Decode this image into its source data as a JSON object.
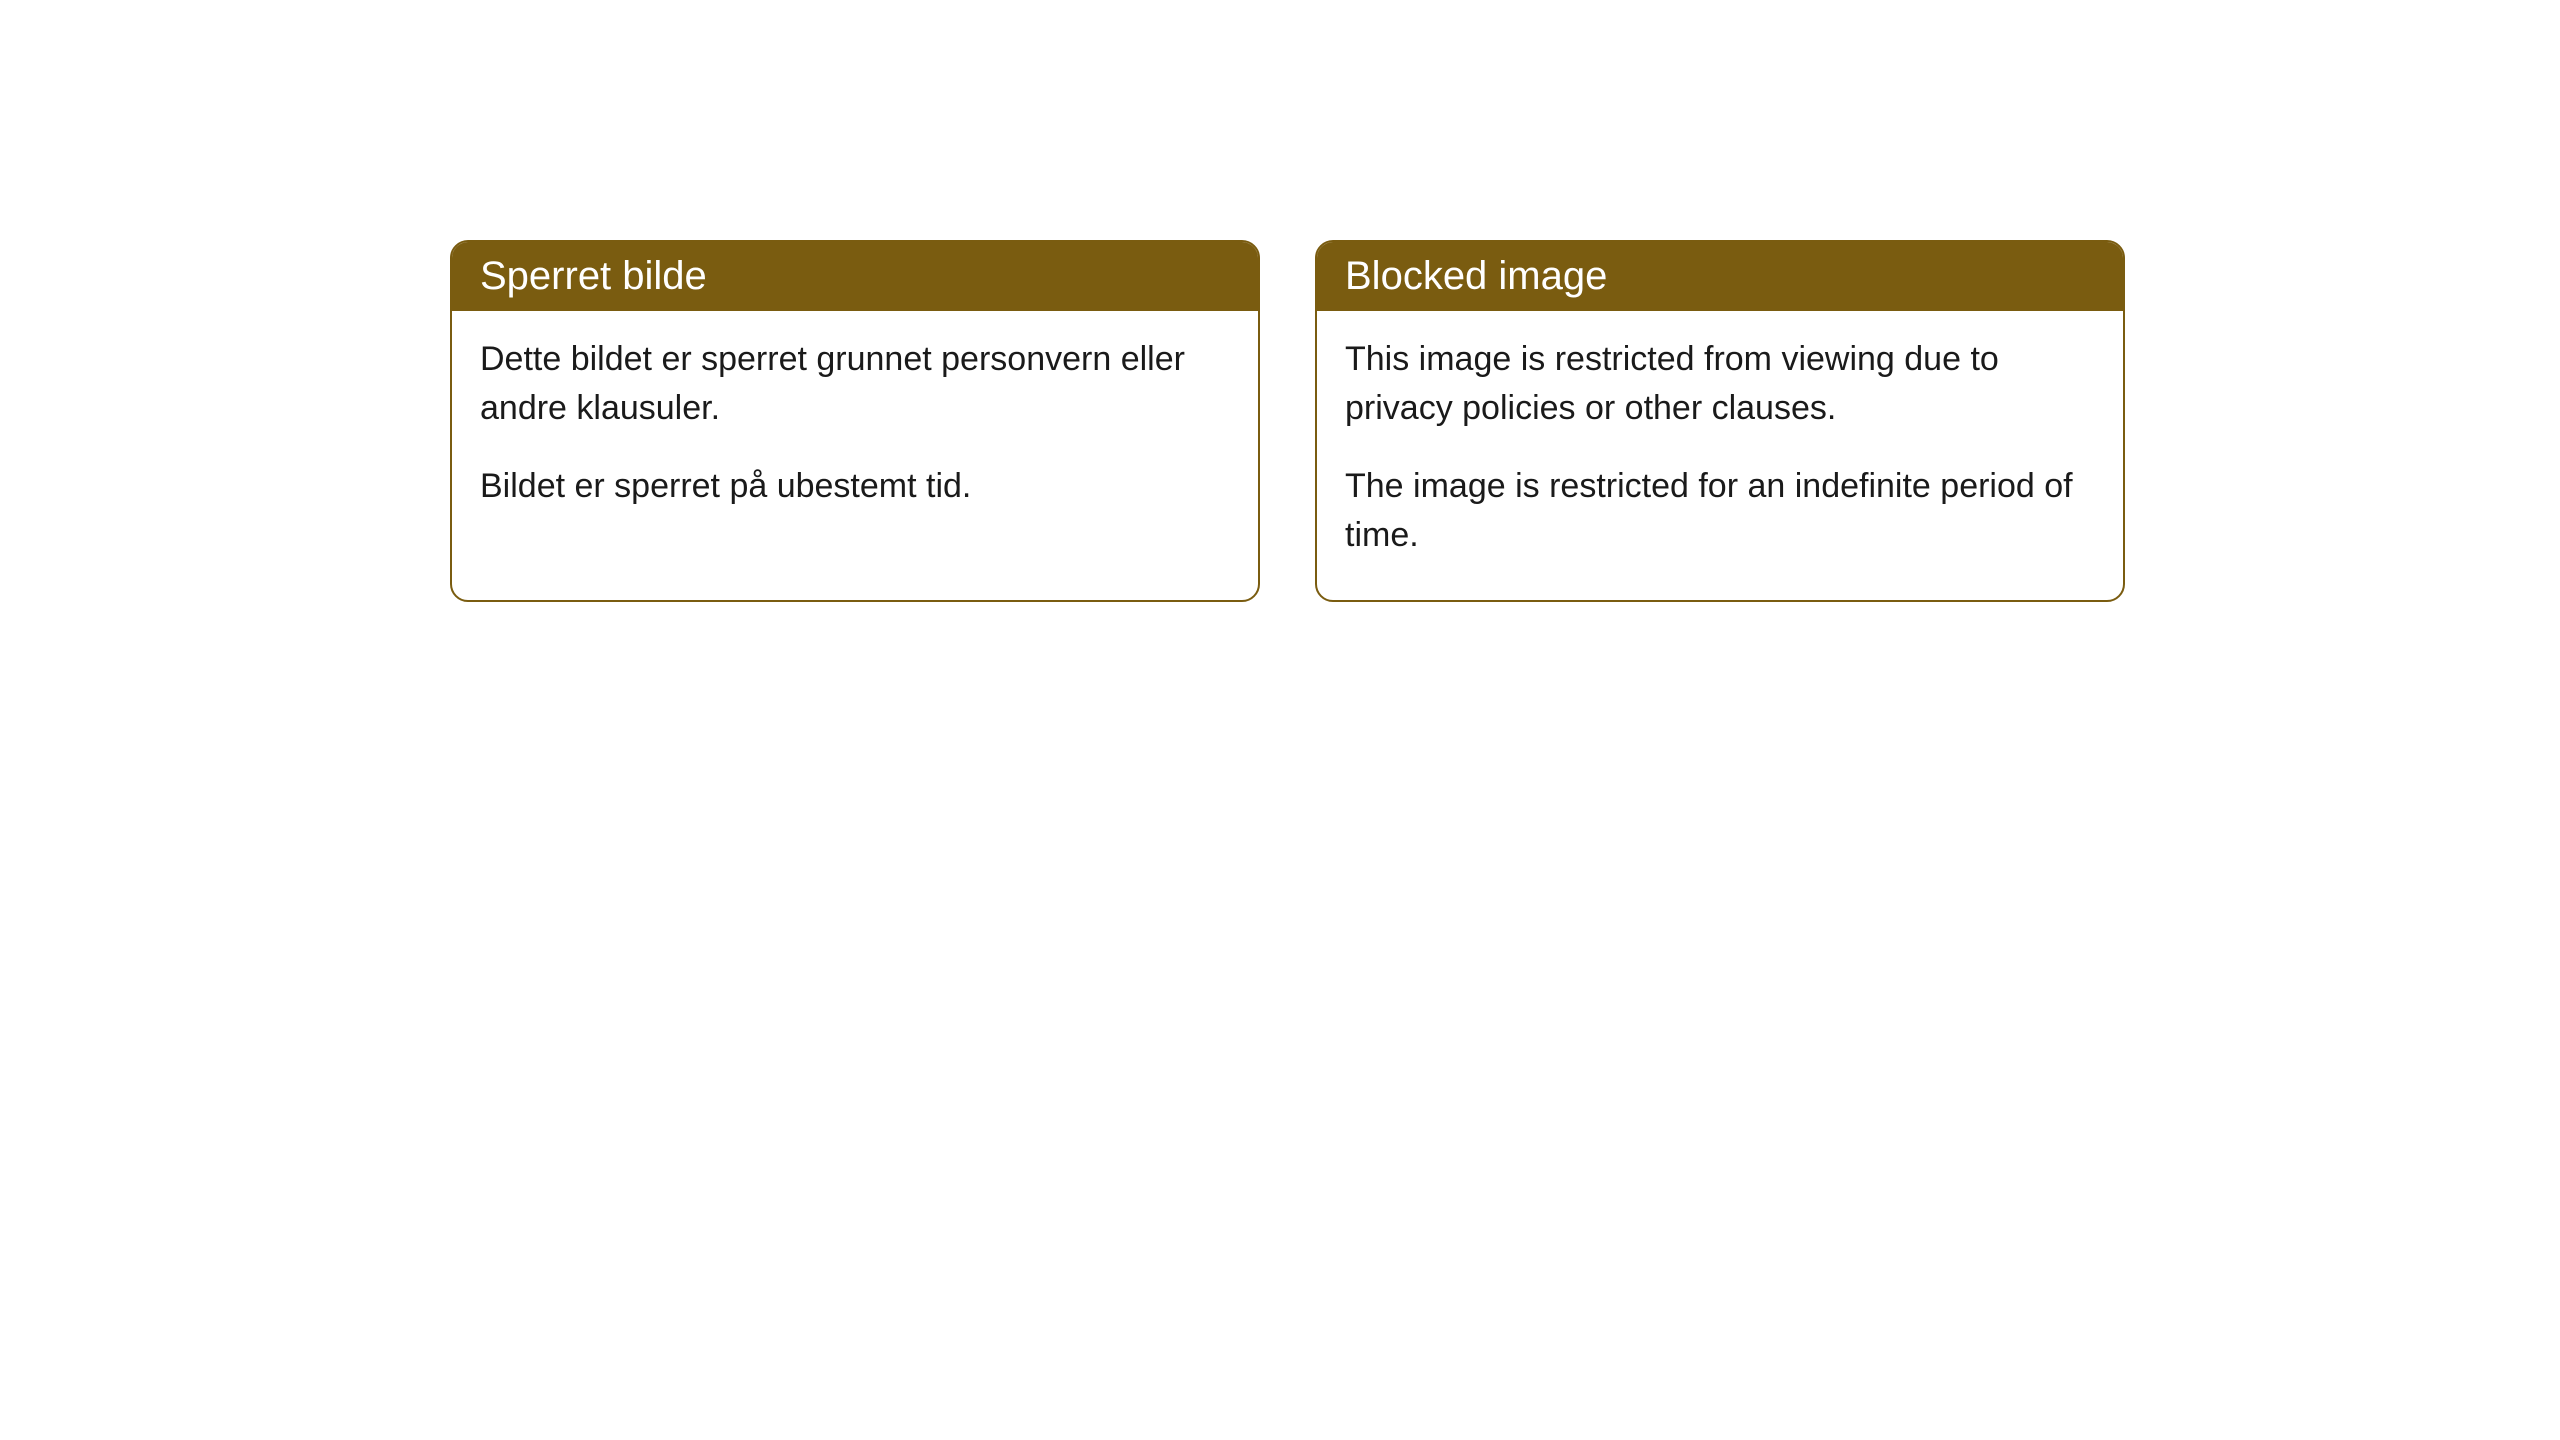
{
  "cards": [
    {
      "title": "Sperret bilde",
      "paragraph1": "Dette bildet er sperret grunnet personvern eller andre klausuler.",
      "paragraph2": "Bildet er sperret på ubestemt tid."
    },
    {
      "title": "Blocked image",
      "paragraph1": "This image is restricted from viewing due to privacy policies or other clauses.",
      "paragraph2": "The image is restricted for an indefinite period of time."
    }
  ],
  "style": {
    "header_background": "#7a5c10",
    "header_text_color": "#ffffff",
    "border_color": "#7a5c10",
    "body_text_color": "#1a1a1a",
    "card_background": "#ffffff",
    "page_background": "#ffffff",
    "border_radius": 18,
    "header_fontsize": 40,
    "body_fontsize": 34
  }
}
